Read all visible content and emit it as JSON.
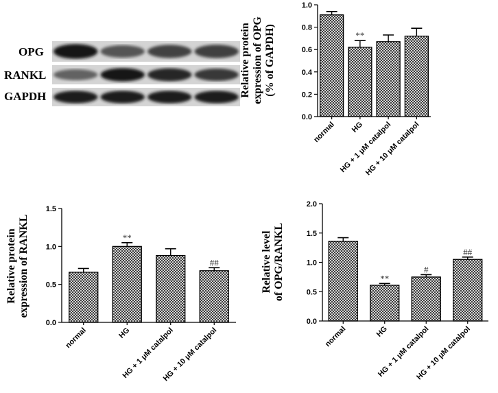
{
  "blot": {
    "labels": [
      "OPG",
      "RANKL",
      "GAPDH"
    ],
    "band_intensity": [
      [
        0.95,
        0.62,
        0.72,
        0.74
      ],
      [
        0.55,
        0.95,
        0.88,
        0.78
      ],
      [
        0.92,
        0.92,
        0.92,
        0.92
      ]
    ]
  },
  "chart_data": [
    {
      "type": "bar",
      "ylabel_lines": [
        "Relative protein",
        "expression of OPG",
        "(% of GAPDH)"
      ],
      "categories": [
        "normal",
        "HG",
        "HG + 1 μM catalpol",
        "HG + 10 μM catalpol"
      ],
      "values": [
        0.91,
        0.62,
        0.67,
        0.72
      ],
      "errors": [
        0.03,
        0.06,
        0.06,
        0.07
      ],
      "annotations": [
        "",
        "**",
        "",
        ""
      ],
      "ylim": [
        0,
        1.0
      ],
      "yticks": [
        "0.0",
        "0.2",
        "0.4",
        "0.6",
        "0.8",
        "1.0"
      ]
    },
    {
      "type": "bar",
      "ylabel_lines": [
        "Relative protein",
        "expression of RANKL"
      ],
      "categories": [
        "normal",
        "HG",
        "HG + 1 μM catalpol",
        "HG + 10 μM catalpol"
      ],
      "values": [
        0.66,
        1.0,
        0.88,
        0.68
      ],
      "errors": [
        0.05,
        0.05,
        0.09,
        0.04
      ],
      "annotations": [
        "",
        "**",
        "",
        "##"
      ],
      "ylim": [
        0,
        1.5
      ],
      "yticks": [
        "0.0",
        "0.5",
        "1.0",
        "1.5"
      ]
    },
    {
      "type": "bar",
      "ylabel_lines": [
        "Relative level",
        "of OPG/RANKL"
      ],
      "categories": [
        "normal",
        "HG",
        "HG + 1 μM catalpol",
        "HG + 10 μM catalpol"
      ],
      "values": [
        1.36,
        0.61,
        0.75,
        1.05
      ],
      "errors": [
        0.06,
        0.03,
        0.04,
        0.04
      ],
      "annotations": [
        "",
        "**",
        "#",
        "##"
      ],
      "ylim": [
        0,
        2.0
      ],
      "yticks": [
        "0.0",
        "0.5",
        "1.0",
        "1.5",
        "2.0"
      ]
    }
  ]
}
